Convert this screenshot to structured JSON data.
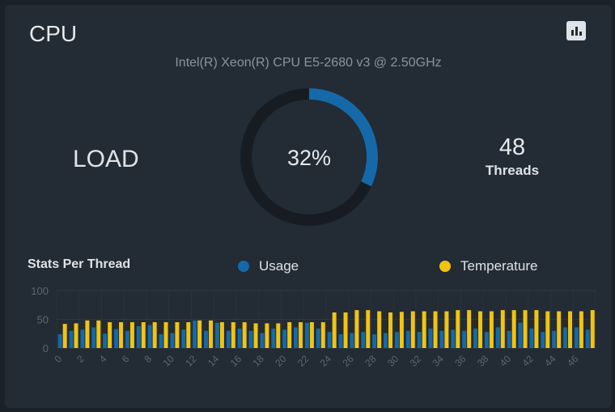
{
  "card": {
    "title": "CPU",
    "chart_icon": "bar-chart-icon",
    "cpu_model": "Intel(R) Xeon(R) CPU E5-2680 v3 @ 2.50GHz",
    "load_label": "LOAD",
    "load_percent": 32,
    "load_text": "32%",
    "threads_count": "48",
    "threads_label": "Threads"
  },
  "stats": {
    "title": "Stats Per Thread",
    "legend": {
      "usage_label": "Usage",
      "temperature_label": "Temperature"
    }
  },
  "colors": {
    "usage": "#1569a8",
    "temperature": "#f1c40f",
    "gauge_track": "#171c22",
    "gauge_fill": "#1569a8"
  },
  "chart_data": {
    "type": "bar",
    "categories": [
      0,
      1,
      2,
      3,
      4,
      5,
      6,
      7,
      8,
      9,
      10,
      11,
      12,
      13,
      14,
      15,
      16,
      17,
      18,
      19,
      20,
      21,
      22,
      23,
      24,
      25,
      26,
      27,
      28,
      29,
      30,
      31,
      32,
      33,
      34,
      35,
      36,
      37,
      38,
      39,
      40,
      41,
      42,
      43,
      44,
      45,
      46,
      47
    ],
    "x_tick_labels": [
      "0",
      "2",
      "4",
      "6",
      "8",
      "10",
      "12",
      "14",
      "16",
      "18",
      "20",
      "22",
      "24",
      "26",
      "28",
      "30",
      "32",
      "34",
      "36",
      "38",
      "40",
      "42",
      "44",
      "46"
    ],
    "y_ticks": [
      0,
      50,
      100
    ],
    "ylim": [
      0,
      100
    ],
    "series": [
      {
        "name": "Usage",
        "values": [
          24,
          30,
          32,
          36,
          25,
          33,
          30,
          38,
          40,
          24,
          26,
          32,
          48,
          30,
          44,
          30,
          34,
          30,
          26,
          34,
          32,
          36,
          44,
          34,
          28,
          24,
          26,
          28,
          24,
          26,
          28,
          30,
          28,
          34,
          30,
          32,
          30,
          34,
          28,
          36,
          30,
          44,
          34,
          28,
          30,
          36,
          36,
          32
        ]
      },
      {
        "name": "Temperature",
        "values": [
          42,
          43,
          48,
          48,
          45,
          45,
          45,
          45,
          45,
          45,
          45,
          45,
          48,
          48,
          45,
          45,
          45,
          43,
          43,
          43,
          45,
          45,
          45,
          45,
          62,
          62,
          66,
          66,
          64,
          62,
          63,
          64,
          64,
          64,
          64,
          66,
          66,
          64,
          64,
          66,
          66,
          66,
          66,
          64,
          64,
          64,
          64,
          66
        ]
      }
    ]
  }
}
